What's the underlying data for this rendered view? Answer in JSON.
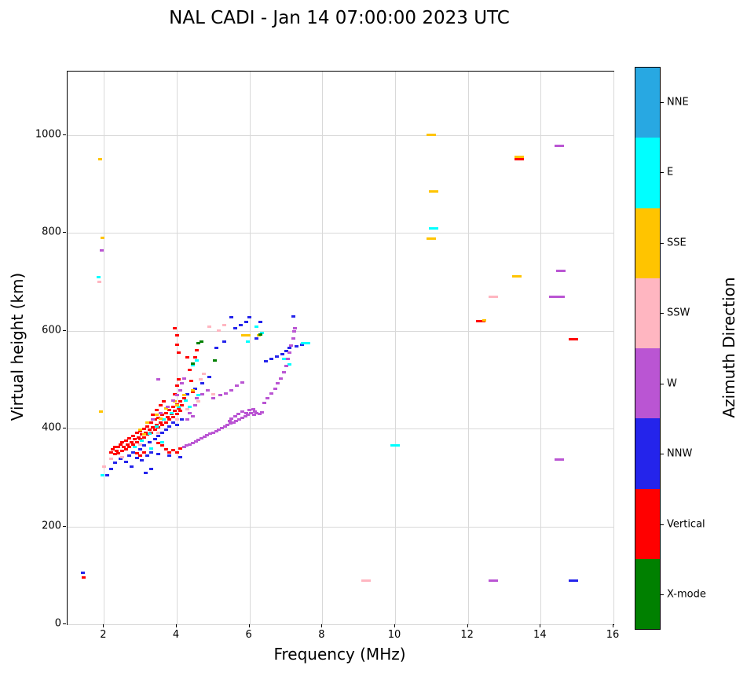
{
  "chart_data": {
    "type": "scatter",
    "title": "NAL CADI - Jan 14 07:00:00 2023 UTC",
    "xlabel": "Frequency (MHz)",
    "ylabel": "Virtual height (km)",
    "xlim": [
      1,
      16
    ],
    "ylim": [
      0,
      1130
    ],
    "xticks": [
      2,
      4,
      6,
      8,
      10,
      12,
      14,
      16
    ],
    "yticks": [
      0,
      200,
      400,
      600,
      800,
      1000
    ],
    "grid": true,
    "legend_position": "right-colorbar",
    "colorbar": {
      "label": "Azimuth Direction",
      "categories": [
        {
          "label": "NNE",
          "color": "#28A8E2"
        },
        {
          "label": "E",
          "color": "#00FFFF"
        },
        {
          "label": "SSE",
          "color": "#FFC400"
        },
        {
          "label": "SSW",
          "color": "#FFB6C1"
        },
        {
          "label": "W",
          "color": "#BA55D3"
        },
        {
          "label": "NNW",
          "color": "#2424EB"
        },
        {
          "label": "Vertical",
          "color": "#FF0000"
        },
        {
          "label": "X-mode",
          "color": "#008000"
        }
      ]
    },
    "series_key": {
      "N": "NNE",
      "E": "E",
      "S": "SSE",
      "P": "SSW",
      "W": "W",
      "B": "NNW",
      "V": "Vertical",
      "X": "X-mode"
    },
    "points": [
      [
        2.2,
        352,
        "V"
      ],
      [
        2.25,
        358,
        "V"
      ],
      [
        2.3,
        348,
        "V"
      ],
      [
        2.3,
        362,
        "V"
      ],
      [
        2.35,
        355,
        "V"
      ],
      [
        2.4,
        350,
        "V"
      ],
      [
        2.4,
        362,
        "V"
      ],
      [
        2.45,
        368,
        "V"
      ],
      [
        2.5,
        355,
        "V"
      ],
      [
        2.5,
        372,
        "V"
      ],
      [
        2.55,
        362,
        "V"
      ],
      [
        2.6,
        358,
        "V"
      ],
      [
        2.6,
        375,
        "V"
      ],
      [
        2.65,
        368,
        "V"
      ],
      [
        2.7,
        362,
        "V"
      ],
      [
        2.7,
        380,
        "V"
      ],
      [
        2.75,
        372,
        "V"
      ],
      [
        2.8,
        368,
        "V"
      ],
      [
        2.8,
        385,
        "V"
      ],
      [
        2.85,
        378,
        "V"
      ],
      [
        2.9,
        372,
        "V"
      ],
      [
        2.9,
        392,
        "V"
      ],
      [
        2.95,
        382,
        "V"
      ],
      [
        3.0,
        378,
        "V"
      ],
      [
        3.0,
        395,
        "V"
      ],
      [
        3.05,
        388,
        "V"
      ],
      [
        3.1,
        382,
        "V"
      ],
      [
        3.1,
        400,
        "V"
      ],
      [
        3.15,
        392,
        "V"
      ],
      [
        3.2,
        388,
        "V"
      ],
      [
        3.2,
        405,
        "V"
      ],
      [
        3.25,
        398,
        "V"
      ],
      [
        3.3,
        392,
        "V"
      ],
      [
        3.3,
        412,
        "V"
      ],
      [
        3.35,
        402,
        "V"
      ],
      [
        3.4,
        398,
        "V"
      ],
      [
        3.4,
        418,
        "V"
      ],
      [
        3.45,
        408,
        "V"
      ],
      [
        3.5,
        402,
        "V"
      ],
      [
        3.5,
        422,
        "V"
      ],
      [
        3.55,
        412,
        "V"
      ],
      [
        3.6,
        408,
        "V"
      ],
      [
        3.6,
        428,
        "V"
      ],
      [
        3.65,
        418,
        "V"
      ],
      [
        3.7,
        412,
        "V"
      ],
      [
        3.7,
        432,
        "V"
      ],
      [
        3.75,
        424,
        "V"
      ],
      [
        3.8,
        418,
        "V"
      ],
      [
        3.8,
        438,
        "V"
      ],
      [
        3.85,
        430,
        "V"
      ],
      [
        3.9,
        424,
        "V"
      ],
      [
        3.9,
        444,
        "V"
      ],
      [
        3.95,
        436,
        "V"
      ],
      [
        4.0,
        430,
        "V"
      ],
      [
        4.0,
        450,
        "V"
      ],
      [
        4.05,
        442,
        "V"
      ],
      [
        4.1,
        436,
        "V"
      ],
      [
        4.1,
        456,
        "V"
      ],
      [
        4.15,
        448,
        "V"
      ],
      [
        4.2,
        462,
        "V"
      ],
      [
        3.35,
        428,
        "V"
      ],
      [
        3.45,
        438,
        "V"
      ],
      [
        3.55,
        448,
        "V"
      ],
      [
        3.65,
        455,
        "V"
      ],
      [
        3.5,
        370,
        "V"
      ],
      [
        3.6,
        365,
        "V"
      ],
      [
        3.7,
        358,
        "V"
      ],
      [
        3.8,
        352,
        "V"
      ],
      [
        3.9,
        356,
        "V"
      ],
      [
        4.0,
        352,
        "V"
      ],
      [
        4.1,
        360,
        "V"
      ],
      [
        3.95,
        470,
        "V"
      ],
      [
        4.0,
        488,
        "V"
      ],
      [
        4.05,
        500,
        "V"
      ],
      [
        3.95,
        605,
        "V"
      ],
      [
        4.0,
        590,
        "V"
      ],
      [
        4.0,
        572,
        "V"
      ],
      [
        4.05,
        556,
        "V"
      ],
      [
        4.3,
        545,
        "V"
      ],
      [
        4.35,
        520,
        "V"
      ],
      [
        4.4,
        498,
        "V"
      ],
      [
        4.45,
        475,
        "V"
      ],
      [
        4.5,
        545,
        "V"
      ],
      [
        4.55,
        560,
        "V"
      ],
      [
        2.9,
        350,
        "V"
      ],
      [
        3.0,
        345,
        "V"
      ],
      [
        3.1,
        352,
        "V"
      ],
      [
        1.44,
        96,
        "V"
      ],
      [
        12.35,
        620,
        "V",
        2
      ],
      [
        13.4,
        950,
        "V",
        2
      ],
      [
        14.9,
        582,
        "V",
        2
      ],
      [
        1.43,
        106,
        "B"
      ],
      [
        2.1,
        305,
        "B"
      ],
      [
        2.2,
        318,
        "B"
      ],
      [
        2.3,
        330,
        "B"
      ],
      [
        2.45,
        338,
        "B"
      ],
      [
        2.6,
        332,
        "B"
      ],
      [
        2.7,
        345,
        "B"
      ],
      [
        2.75,
        322,
        "B"
      ],
      [
        2.8,
        352,
        "B"
      ],
      [
        2.9,
        340,
        "B"
      ],
      [
        3.0,
        358,
        "B"
      ],
      [
        3.05,
        335,
        "B"
      ],
      [
        3.1,
        365,
        "B"
      ],
      [
        3.15,
        310,
        "B"
      ],
      [
        3.2,
        345,
        "B"
      ],
      [
        3.25,
        372,
        "B"
      ],
      [
        3.3,
        318,
        "B"
      ],
      [
        3.3,
        352,
        "B"
      ],
      [
        3.4,
        378,
        "B"
      ],
      [
        3.5,
        348,
        "B"
      ],
      [
        3.5,
        385,
        "B"
      ],
      [
        3.6,
        392,
        "B"
      ],
      [
        3.7,
        398,
        "B"
      ],
      [
        3.8,
        345,
        "B"
      ],
      [
        3.8,
        405,
        "B"
      ],
      [
        3.9,
        412,
        "B"
      ],
      [
        4.0,
        408,
        "B"
      ],
      [
        4.1,
        342,
        "B"
      ],
      [
        4.15,
        418,
        "B"
      ],
      [
        4.3,
        470,
        "B"
      ],
      [
        4.5,
        482,
        "B"
      ],
      [
        4.7,
        492,
        "B"
      ],
      [
        4.9,
        505,
        "B"
      ],
      [
        5.1,
        565,
        "B"
      ],
      [
        5.3,
        578,
        "B"
      ],
      [
        5.5,
        628,
        "B"
      ],
      [
        5.6,
        605,
        "B"
      ],
      [
        5.75,
        612,
        "B"
      ],
      [
        5.9,
        618,
        "B"
      ],
      [
        6.0,
        628,
        "B"
      ],
      [
        6.2,
        585,
        "B"
      ],
      [
        6.3,
        618,
        "B"
      ],
      [
        6.45,
        538,
        "B"
      ],
      [
        6.6,
        542,
        "B"
      ],
      [
        6.75,
        548,
        "B"
      ],
      [
        6.9,
        552,
        "B"
      ],
      [
        7.0,
        558,
        "B"
      ],
      [
        7.1,
        565,
        "B"
      ],
      [
        7.2,
        630,
        "B"
      ],
      [
        7.3,
        568,
        "B"
      ],
      [
        7.45,
        572,
        "B"
      ],
      [
        14.9,
        90,
        "B",
        2
      ],
      [
        1.85,
        710,
        "E"
      ],
      [
        1.95,
        305,
        "E"
      ],
      [
        2.85,
        362,
        "E"
      ],
      [
        3.05,
        375,
        "E"
      ],
      [
        3.25,
        390,
        "E"
      ],
      [
        3.3,
        360,
        "E"
      ],
      [
        3.45,
        405,
        "E"
      ],
      [
        3.6,
        372,
        "E"
      ],
      [
        3.65,
        418,
        "E"
      ],
      [
        3.85,
        432,
        "E"
      ],
      [
        4.05,
        445,
        "E"
      ],
      [
        4.25,
        458,
        "E"
      ],
      [
        4.35,
        445,
        "E"
      ],
      [
        4.45,
        530,
        "E"
      ],
      [
        4.55,
        540,
        "E"
      ],
      [
        4.6,
        468,
        "E"
      ],
      [
        5.95,
        578,
        "E"
      ],
      [
        6.2,
        608,
        "E"
      ],
      [
        6.35,
        595,
        "E"
      ],
      [
        6.95,
        542,
        "E"
      ],
      [
        7.1,
        532,
        "E"
      ],
      [
        7.55,
        575,
        "E",
        2
      ],
      [
        10.0,
        365,
        "E",
        2
      ],
      [
        11.05,
        810,
        "E",
        2
      ],
      [
        1.9,
        950,
        "S"
      ],
      [
        1.92,
        435,
        "S"
      ],
      [
        1.95,
        790,
        "S"
      ],
      [
        3.0,
        398,
        "S"
      ],
      [
        3.1,
        388,
        "S"
      ],
      [
        3.2,
        412,
        "S"
      ],
      [
        3.45,
        428,
        "S"
      ],
      [
        3.55,
        420,
        "S"
      ],
      [
        3.7,
        442,
        "S"
      ],
      [
        3.95,
        455,
        "S"
      ],
      [
        4.0,
        448,
        "S"
      ],
      [
        4.2,
        468,
        "S"
      ],
      [
        4.45,
        478,
        "S"
      ],
      [
        5.9,
        590,
        "S",
        2
      ],
      [
        6.25,
        590,
        "S"
      ],
      [
        11.0,
        1000,
        "S",
        2
      ],
      [
        11.05,
        885,
        "S",
        2
      ],
      [
        11.0,
        788,
        "S",
        2
      ],
      [
        12.45,
        622,
        "S"
      ],
      [
        13.35,
        712,
        "S",
        2
      ],
      [
        13.42,
        955,
        "S",
        2
      ],
      [
        1.88,
        700,
        "P"
      ],
      [
        2.0,
        322,
        "P"
      ],
      [
        2.2,
        338,
        "P"
      ],
      [
        2.5,
        342,
        "P"
      ],
      [
        3.0,
        368,
        "P"
      ],
      [
        3.5,
        392,
        "P"
      ],
      [
        4.0,
        418,
        "P"
      ],
      [
        4.3,
        440,
        "P"
      ],
      [
        4.6,
        455,
        "P"
      ],
      [
        4.65,
        500,
        "P"
      ],
      [
        4.75,
        512,
        "P"
      ],
      [
        4.9,
        608,
        "P"
      ],
      [
        5.0,
        470,
        "P"
      ],
      [
        5.15,
        600,
        "P"
      ],
      [
        5.3,
        612,
        "P"
      ],
      [
        9.2,
        90,
        "P",
        2
      ],
      [
        12.7,
        670,
        "P",
        2
      ],
      [
        1.93,
        765,
        "W"
      ],
      [
        4.2,
        362,
        "W"
      ],
      [
        4.28,
        365,
        "W"
      ],
      [
        4.36,
        368,
        "W"
      ],
      [
        4.44,
        371,
        "W"
      ],
      [
        4.52,
        374,
        "W"
      ],
      [
        4.6,
        377,
        "W"
      ],
      [
        4.68,
        380,
        "W"
      ],
      [
        4.76,
        383,
        "W"
      ],
      [
        4.84,
        386,
        "W"
      ],
      [
        4.92,
        389,
        "W"
      ],
      [
        5.0,
        392,
        "W"
      ],
      [
        5.08,
        395,
        "W"
      ],
      [
        5.16,
        398,
        "W"
      ],
      [
        5.24,
        401,
        "W"
      ],
      [
        5.32,
        404,
        "W"
      ],
      [
        5.4,
        407,
        "W"
      ],
      [
        5.48,
        410,
        "W"
      ],
      [
        5.56,
        413,
        "W"
      ],
      [
        5.64,
        416,
        "W"
      ],
      [
        5.72,
        419,
        "W"
      ],
      [
        5.8,
        422,
        "W"
      ],
      [
        5.88,
        425,
        "W"
      ],
      [
        5.96,
        428,
        "W"
      ],
      [
        6.04,
        431,
        "W"
      ],
      [
        6.12,
        428,
        "W"
      ],
      [
        6.2,
        432,
        "W"
      ],
      [
        6.28,
        430,
        "W"
      ],
      [
        6.35,
        433,
        "W"
      ],
      [
        5.45,
        415,
        "W"
      ],
      [
        5.5,
        420,
        "W"
      ],
      [
        5.6,
        425,
        "W"
      ],
      [
        5.7,
        430,
        "W"
      ],
      [
        5.8,
        435,
        "W"
      ],
      [
        5.9,
        432,
        "W"
      ],
      [
        6.0,
        438,
        "W"
      ],
      [
        6.1,
        440,
        "W"
      ],
      [
        6.15,
        435,
        "W"
      ],
      [
        6.4,
        452,
        "W"
      ],
      [
        6.5,
        462,
        "W"
      ],
      [
        6.6,
        472,
        "W"
      ],
      [
        6.7,
        482,
        "W"
      ],
      [
        6.78,
        492,
        "W"
      ],
      [
        6.86,
        502,
        "W"
      ],
      [
        6.94,
        515,
        "W"
      ],
      [
        7.0,
        528,
        "W"
      ],
      [
        7.05,
        542,
        "W"
      ],
      [
        7.1,
        556,
        "W"
      ],
      [
        7.15,
        570,
        "W"
      ],
      [
        7.2,
        585,
        "W"
      ],
      [
        7.22,
        598,
        "W"
      ],
      [
        7.25,
        605,
        "W"
      ],
      [
        4.3,
        418,
        "W"
      ],
      [
        4.35,
        432,
        "W"
      ],
      [
        4.45,
        425,
        "W"
      ],
      [
        4.5,
        448,
        "W"
      ],
      [
        4.55,
        462,
        "W"
      ],
      [
        4.7,
        470,
        "W"
      ],
      [
        4.85,
        478,
        "W"
      ],
      [
        5.0,
        462,
        "W"
      ],
      [
        5.2,
        468,
        "W"
      ],
      [
        5.35,
        472,
        "W"
      ],
      [
        5.5,
        478,
        "W"
      ],
      [
        5.65,
        488,
        "W"
      ],
      [
        5.8,
        495,
        "W"
      ],
      [
        3.35,
        418,
        "W"
      ],
      [
        3.5,
        500,
        "W"
      ],
      [
        3.55,
        432,
        "W"
      ],
      [
        3.75,
        445,
        "W"
      ],
      [
        3.9,
        458,
        "W"
      ],
      [
        4.0,
        468,
        "W"
      ],
      [
        4.1,
        478,
        "W"
      ],
      [
        4.15,
        492,
        "W"
      ],
      [
        4.2,
        502,
        "W"
      ],
      [
        12.7,
        90,
        "W",
        2
      ],
      [
        14.5,
        978,
        "W",
        2
      ],
      [
        14.55,
        722,
        "W",
        2
      ],
      [
        14.45,
        670,
        "W",
        3
      ],
      [
        14.5,
        337,
        "W",
        2
      ],
      [
        4.45,
        533,
        "X"
      ],
      [
        4.6,
        575,
        "X"
      ],
      [
        4.68,
        578,
        "X"
      ],
      [
        5.05,
        540,
        "X"
      ],
      [
        6.3,
        593,
        "X"
      ]
    ]
  }
}
